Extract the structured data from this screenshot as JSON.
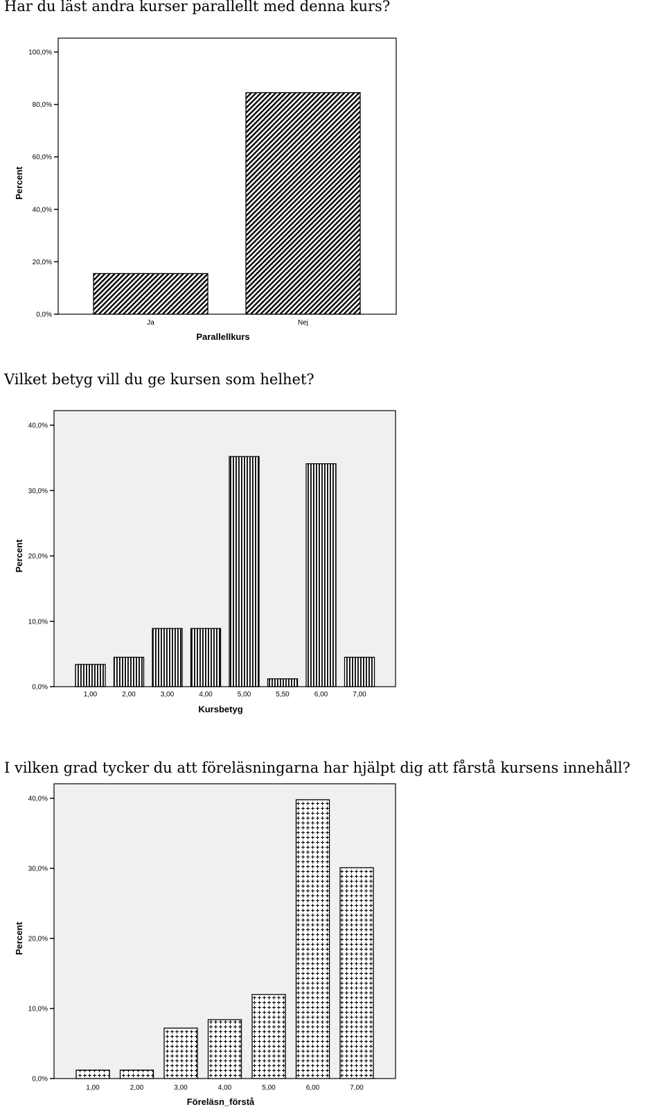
{
  "charts": [
    {
      "question": "Har du läst andra kurser parallellt med denna kurs?",
      "chart_data": {
        "type": "bar",
        "categories": [
          "Ja",
          "Nej"
        ],
        "values": [
          15.5,
          84.5
        ],
        "xlabel": "Parallellkurs",
        "ylabel": "Percent",
        "ylim": [
          0,
          100
        ],
        "yticks": [
          "0,0%",
          "20,0%",
          "40,0%",
          "60,0%",
          "80,0%",
          "100,0%"
        ],
        "background": "#ffffff",
        "pattern": "diagonal-hatch"
      }
    },
    {
      "question": "Vilket betyg vill du ge kursen som helhet?",
      "chart_data": {
        "type": "bar",
        "categories": [
          "1,00",
          "2,00",
          "3,00",
          "4,00",
          "5,00",
          "5,50",
          "6,00",
          "7,00"
        ],
        "values": [
          3.4,
          4.5,
          8.9,
          8.9,
          35.2,
          1.2,
          34.1,
          4.5
        ],
        "xlabel": "Kursbetyg",
        "ylabel": "Percent",
        "ylim": [
          0,
          40
        ],
        "yticks": [
          "0,0%",
          "10,0%",
          "20,0%",
          "30,0%",
          "40,0%"
        ],
        "background": "#f0f0f0",
        "pattern": "vertical-stripes"
      }
    },
    {
      "question": "I vilken grad tycker du att föreläsningarna har hjälpt dig att fårstå kursens innehåll?",
      "chart_data": {
        "type": "bar",
        "categories": [
          "1,00",
          "2,00",
          "3,00",
          "4,00",
          "5,00",
          "6,00",
          "7,00"
        ],
        "values": [
          1.2,
          1.2,
          7.2,
          8.4,
          12.0,
          39.8,
          30.1
        ],
        "xlabel": "Föreläsn_förstå",
        "ylabel": "Percent",
        "ylim": [
          0,
          40
        ],
        "yticks": [
          "0,0%",
          "10,0%",
          "20,0%",
          "30,0%",
          "40,0%"
        ],
        "background": "#f0f0f0",
        "pattern": "plus-grid"
      }
    }
  ]
}
